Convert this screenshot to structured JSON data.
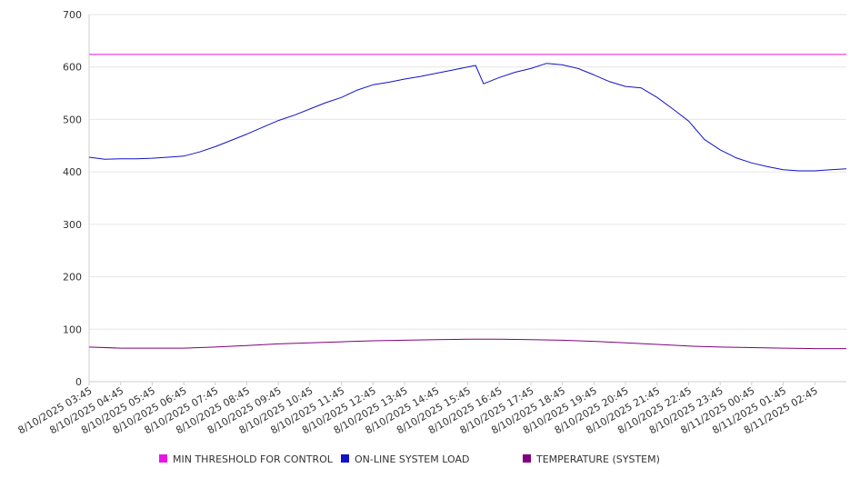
{
  "chart_data": {
    "type": "line",
    "title": "",
    "xlabel": "",
    "ylabel": "",
    "ylim": [
      0,
      700
    ],
    "y_ticks": [
      0,
      100,
      200,
      300,
      400,
      500,
      600,
      700
    ],
    "grid": "horizontal",
    "legend_position": "bottom",
    "x_tick_labels": [
      "8/10/2025 03:45",
      "8/10/2025 04:45",
      "8/10/2025 05:45",
      "8/10/2025 06:45",
      "8/10/2025 07:45",
      "8/10/2025 08:45",
      "8/10/2025 09:45",
      "8/10/2025 10:45",
      "8/10/2025 11:45",
      "8/10/2025 12:45",
      "8/10/2025 13:45",
      "8/10/2025 14:45",
      "8/10/2025 15:45",
      "8/10/2025 16:45",
      "8/10/2025 17:45",
      "8/10/2025 18:45",
      "8/10/2025 19:45",
      "8/10/2025 20:45",
      "8/10/2025 21:45",
      "8/10/2025 22:45",
      "8/10/2025 23:45",
      "8/11/2025 00:45",
      "8/11/2025 01:45",
      "8/11/2025 02:45"
    ],
    "x_range": [
      "8/10/2025 03:45",
      "8/11/2025 03:45"
    ],
    "series": [
      {
        "name": "MIN THRESHOLD FOR CONTROL",
        "color": "#e815e8",
        "x": [
          "8/10/2025 03:45",
          "8/11/2025 03:45"
        ],
        "values": [
          624,
          624
        ]
      },
      {
        "name": "ON-LINE SYSTEM LOAD",
        "color": "#1212c8",
        "x": [
          "8/10/2025 03:45",
          "8/10/2025 04:15",
          "8/10/2025 04:45",
          "8/10/2025 05:15",
          "8/10/2025 05:45",
          "8/10/2025 06:15",
          "8/10/2025 06:45",
          "8/10/2025 07:15",
          "8/10/2025 07:45",
          "8/10/2025 08:15",
          "8/10/2025 08:45",
          "8/10/2025 09:15",
          "8/10/2025 09:45",
          "8/10/2025 10:15",
          "8/10/2025 10:45",
          "8/10/2025 11:15",
          "8/10/2025 11:45",
          "8/10/2025 12:15",
          "8/10/2025 12:45",
          "8/10/2025 13:15",
          "8/10/2025 13:45",
          "8/10/2025 14:15",
          "8/10/2025 14:45",
          "8/10/2025 15:15",
          "8/10/2025 15:45",
          "8/10/2025 16:00",
          "8/10/2025 16:15",
          "8/10/2025 16:45",
          "8/10/2025 17:15",
          "8/10/2025 17:45",
          "8/10/2025 18:15",
          "8/10/2025 18:45",
          "8/10/2025 19:15",
          "8/10/2025 19:45",
          "8/10/2025 20:15",
          "8/10/2025 20:45",
          "8/10/2025 21:15",
          "8/10/2025 21:45",
          "8/10/2025 22:15",
          "8/10/2025 22:45",
          "8/10/2025 23:15",
          "8/10/2025 23:45",
          "8/11/2025 00:15",
          "8/11/2025 00:45",
          "8/11/2025 01:15",
          "8/11/2025 01:45",
          "8/11/2025 02:15",
          "8/11/2025 02:45",
          "8/11/2025 03:15",
          "8/11/2025 03:45"
        ],
        "values": [
          428,
          424,
          425,
          425,
          426,
          428,
          430,
          438,
          448,
          460,
          472,
          485,
          498,
          508,
          520,
          532,
          542,
          556,
          566,
          571,
          577,
          582,
          588,
          594,
          600,
          603,
          568,
          580,
          590,
          597,
          607,
          604,
          597,
          585,
          572,
          563,
          560,
          542,
          520,
          497,
          462,
          442,
          427,
          417,
          410,
          404,
          402,
          402,
          404,
          406
        ]
      },
      {
        "name": "TEMPERATURE (SYSTEM)",
        "color": "#800080",
        "x": [
          "8/10/2025 03:45",
          "8/10/2025 04:45",
          "8/10/2025 05:45",
          "8/10/2025 06:45",
          "8/10/2025 07:45",
          "8/10/2025 08:45",
          "8/10/2025 09:45",
          "8/10/2025 10:45",
          "8/10/2025 11:45",
          "8/10/2025 12:45",
          "8/10/2025 13:45",
          "8/10/2025 14:45",
          "8/10/2025 15:45",
          "8/10/2025 16:45",
          "8/10/2025 17:45",
          "8/10/2025 18:45",
          "8/10/2025 19:45",
          "8/10/2025 20:45",
          "8/10/2025 21:45",
          "8/10/2025 22:45",
          "8/10/2025 23:45",
          "8/11/2025 00:45",
          "8/11/2025 01:45",
          "8/11/2025 02:45",
          "8/11/2025 03:45"
        ],
        "values": [
          66,
          64,
          64,
          64,
          66,
          69,
          72,
          74,
          76,
          78,
          79,
          80,
          81,
          81,
          80,
          79,
          77,
          74,
          71,
          68,
          66,
          65,
          64,
          63,
          63
        ]
      }
    ]
  }
}
